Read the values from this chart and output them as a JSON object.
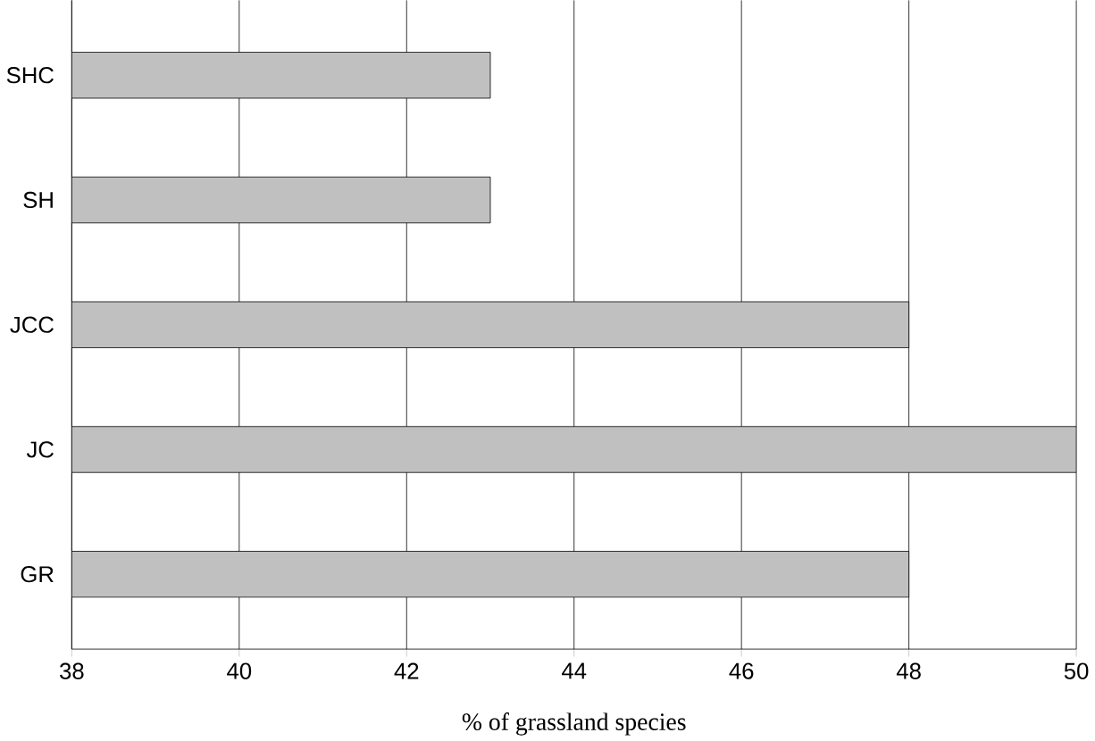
{
  "chart_data": {
    "type": "bar",
    "orientation": "horizontal",
    "categories": [
      "SHC",
      "SH",
      "JCC",
      "JC",
      "GR"
    ],
    "values": [
      43,
      43,
      48,
      50,
      48
    ],
    "color": "#c0c0c0",
    "xlim": [
      38,
      50
    ],
    "xticks": [
      38,
      40,
      42,
      44,
      46,
      48,
      50
    ],
    "grid": "x",
    "xlabel": "% of grassland species"
  }
}
